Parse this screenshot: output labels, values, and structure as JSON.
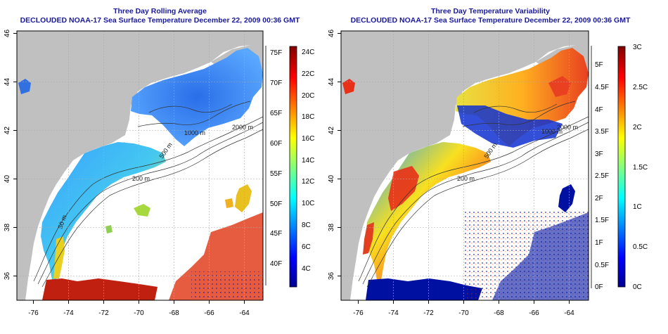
{
  "left_panel": {
    "title": "Three Day Rolling Average",
    "subtitle": "DECLOUDED NOAA-17 Sea Surface Temperature December 22, 2009 00:36 GMT",
    "colorbar_celsius": [
      "4C",
      "6C",
      "8C",
      "10C",
      "12C",
      "14C",
      "16C",
      "18C",
      "20C",
      "22C",
      "24C"
    ],
    "colorbar_fahrenheit": [
      "40F",
      "45F",
      "50F",
      "55F",
      "60F",
      "65F",
      "70F",
      "75F"
    ]
  },
  "right_panel": {
    "title": "Three Day Temperature Variability",
    "subtitle": "DECLOUDED NOAA-17 Sea Surface Temperature December 22, 2009 00:36 GMT",
    "colorbar_celsius": [
      "0C",
      "0.5C",
      "1C",
      "1.5C",
      "2C",
      "2.5C",
      "3C"
    ],
    "colorbar_fahrenheit": [
      "0F",
      "0.5F",
      "1F",
      "1.5F",
      "2F",
      "2.5F",
      "3F",
      "3.5F",
      "4F",
      "4.5F",
      "5F"
    ]
  },
  "axes": {
    "lon_ticks": [
      "-76",
      "-74",
      "-72",
      "-70",
      "-68",
      "-66",
      "-64"
    ],
    "lat_ticks": [
      "36",
      "38",
      "40",
      "42",
      "44",
      "46"
    ]
  },
  "contour_labels": [
    "200 m",
    "500 m",
    "1000 m",
    "2000 m",
    "50 m"
  ],
  "colors": {
    "land": "#c0c0c0",
    "title": "#1a1a9a",
    "ocean": "#ffffff"
  }
}
